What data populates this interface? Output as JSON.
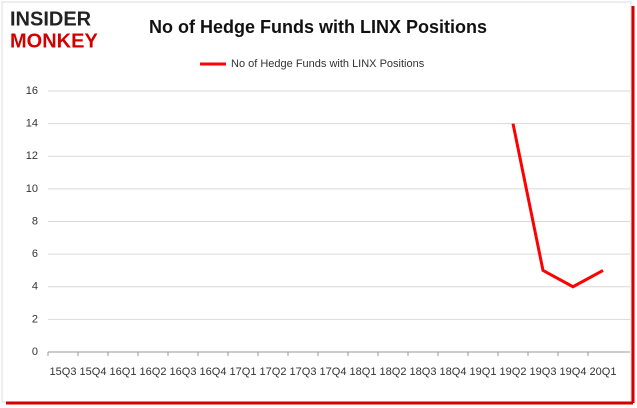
{
  "logo": {
    "line1": "INSIDER",
    "line2": "MONKEY"
  },
  "chart_data": {
    "type": "line",
    "title": "No of Hedge Funds with LINX Positions",
    "categories": [
      "15Q3",
      "15Q4",
      "16Q1",
      "16Q2",
      "16Q3",
      "16Q4",
      "17Q1",
      "17Q2",
      "17Q3",
      "17Q4",
      "18Q1",
      "18Q2",
      "18Q3",
      "18Q4",
      "19Q1",
      "19Q2",
      "19Q3",
      "19Q4",
      "20Q1"
    ],
    "series": [
      {
        "name": "No of Hedge Funds with LINX Positions",
        "color": "#ff0000",
        "values": [
          null,
          null,
          null,
          null,
          null,
          null,
          null,
          null,
          null,
          null,
          null,
          null,
          null,
          null,
          null,
          14,
          5,
          4,
          5
        ]
      }
    ],
    "ylim": [
      0,
      16
    ],
    "yticks": [
      0,
      2,
      4,
      6,
      8,
      10,
      12,
      14,
      16
    ],
    "grid": true,
    "legend": "top"
  }
}
